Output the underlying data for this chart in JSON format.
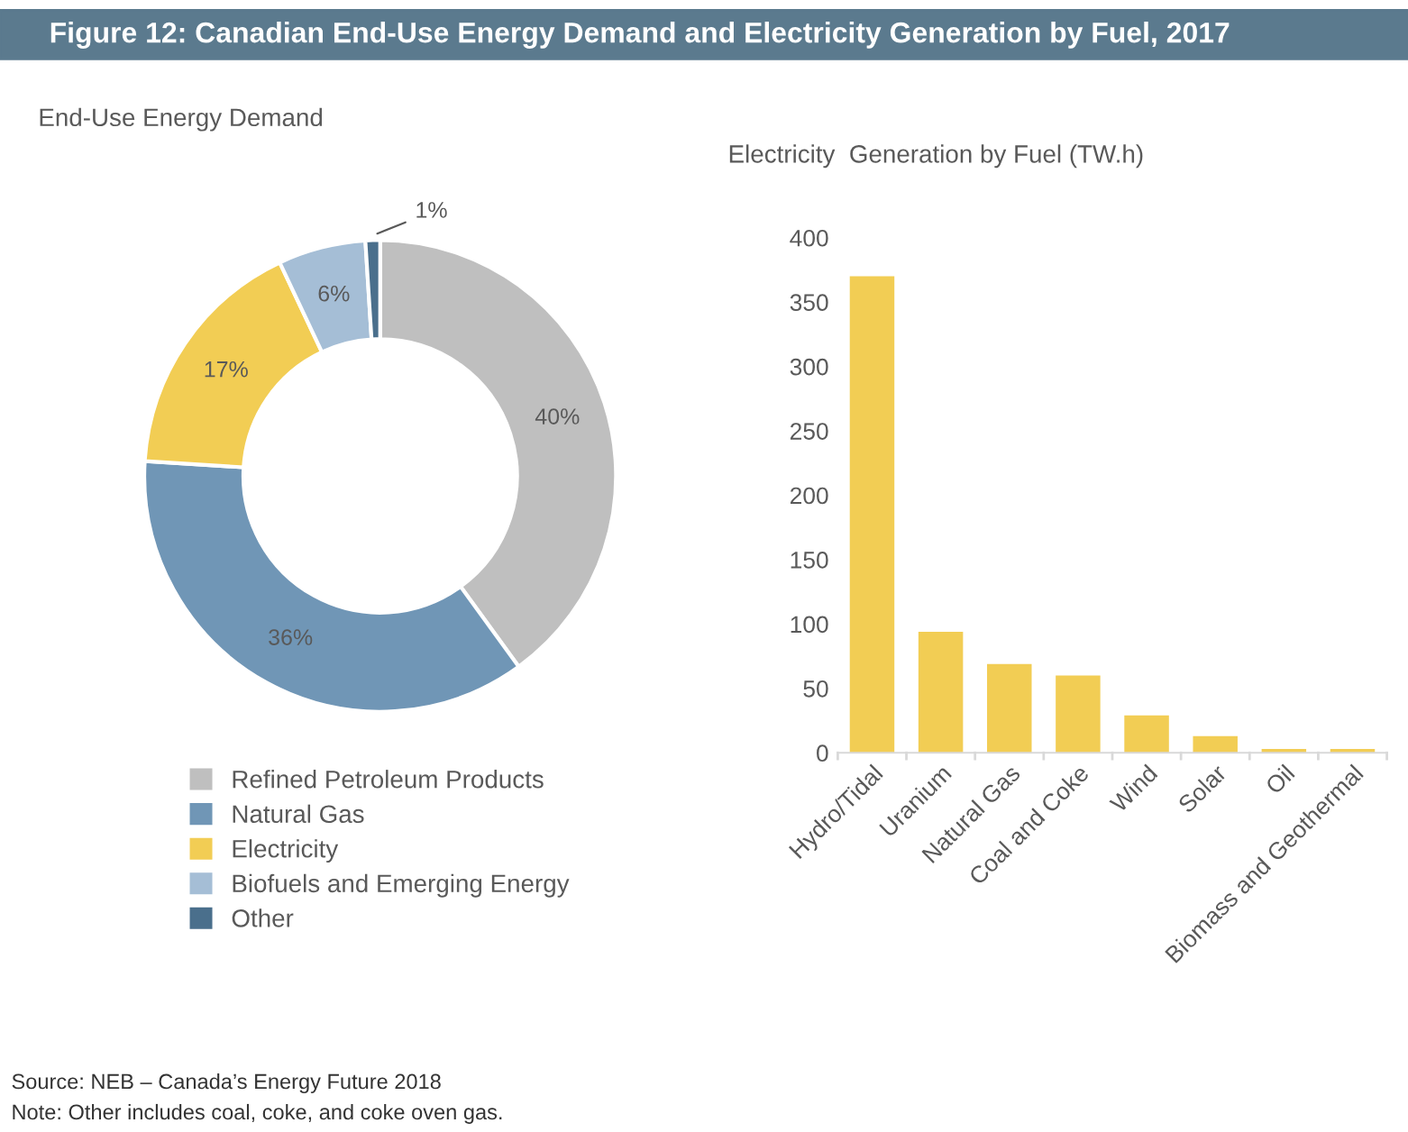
{
  "chart_data": [
    {
      "type": "donut",
      "title": "Figure 12: Canadian End-Use Energy Demand and Electricity Generation by Fuel, 2017",
      "subtitle": "End-Use Energy Demand",
      "categories": [
        "Refined Petroleum Products",
        "Natural Gas",
        "Electricity",
        "Biofuels and Emerging Energy",
        "Other"
      ],
      "values": [
        40,
        36,
        17,
        6,
        1
      ],
      "colors": [
        "#bfbfbf",
        "#7096b6",
        "#f2cd54",
        "#a5bed6",
        "#4a6f8c"
      ],
      "value_labels": [
        "40%",
        "36%",
        "17%",
        "6%",
        "1%"
      ],
      "legend": "bottom",
      "annotations": [
        "Source: NEB – Canada’s Energy Future 2018",
        "Note: Other includes coal, coke, and coke oven gas."
      ]
    },
    {
      "type": "bar",
      "title": "Electricity  Generation by Fuel (TW.h)",
      "categories": [
        "Hydro/Tidal",
        "Uranium",
        "Natural Gas",
        "Coal and Coke",
        "Wind",
        "Solar",
        "Oil",
        "Biomass and Geothermal"
      ],
      "values": [
        370,
        94,
        69,
        60,
        29,
        13,
        3,
        3
      ],
      "color": "#f2cd54",
      "ylim": [
        0,
        400
      ],
      "yticks": [
        0,
        50,
        100,
        150,
        200,
        250,
        300,
        350,
        400
      ],
      "grid": false
    }
  ]
}
